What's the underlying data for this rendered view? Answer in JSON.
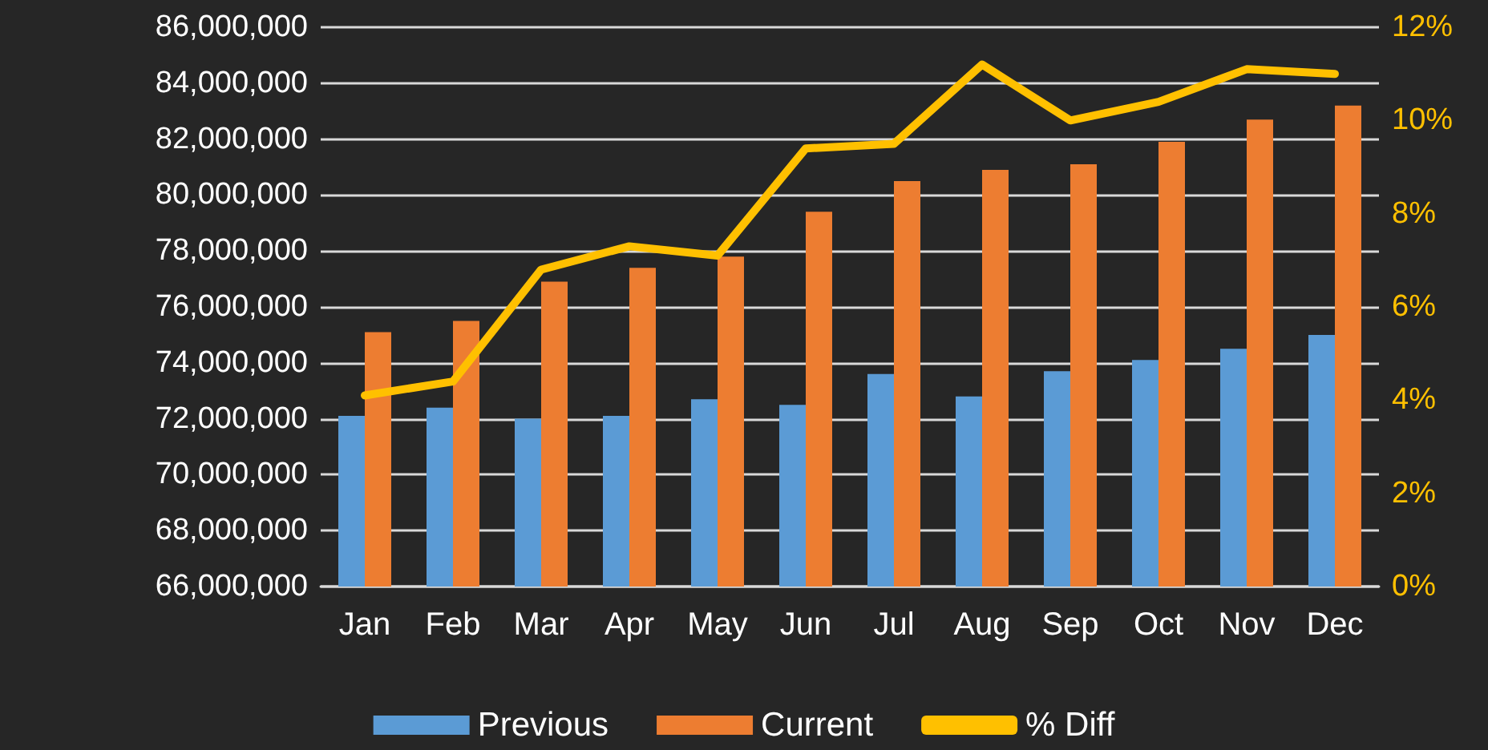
{
  "chart_data": {
    "type": "bar",
    "categories": [
      "Jan",
      "Feb",
      "Mar",
      "Apr",
      "May",
      "Jun",
      "Jul",
      "Aug",
      "Sep",
      "Oct",
      "Nov",
      "Dec"
    ],
    "series": [
      {
        "name": "Previous",
        "color": "#5b9bd5",
        "values": [
          72100000,
          72400000,
          72000000,
          72100000,
          72700000,
          72500000,
          73600000,
          72800000,
          73700000,
          74100000,
          74500000,
          75000000
        ]
      },
      {
        "name": "Current",
        "color": "#ed7d31",
        "values": [
          75100000,
          75500000,
          76900000,
          77400000,
          77800000,
          79400000,
          80500000,
          80900000,
          81100000,
          81900000,
          82700000,
          83200000
        ]
      },
      {
        "name": "% Diff",
        "type": "line",
        "axis": "y2",
        "color": "#ffc000",
        "marker": "none",
        "values": [
          4.1,
          4.4,
          6.8,
          7.3,
          7.1,
          9.4,
          9.5,
          11.2,
          10.0,
          10.4,
          11.1,
          11.0
        ]
      }
    ],
    "ylim": [
      66000000,
      86000000
    ],
    "yticks": [
      {
        "value": 66000000,
        "label": "66,000,000"
      },
      {
        "value": 68000000,
        "label": "68,000,000"
      },
      {
        "value": 70000000,
        "label": "70,000,000"
      },
      {
        "value": 72000000,
        "label": "72,000,000"
      },
      {
        "value": 74000000,
        "label": "74,000,000"
      },
      {
        "value": 76000000,
        "label": "76,000,000"
      },
      {
        "value": 78000000,
        "label": "78,000,000"
      },
      {
        "value": 80000000,
        "label": "80,000,000"
      },
      {
        "value": 82000000,
        "label": "82,000,000"
      },
      {
        "value": 84000000,
        "label": "84,000,000"
      },
      {
        "value": 86000000,
        "label": "86,000,000"
      }
    ],
    "y2lim": [
      0,
      12
    ],
    "y2ticks": [
      {
        "value": 0,
        "label": "0%"
      },
      {
        "value": 2,
        "label": "2%"
      },
      {
        "value": 4,
        "label": "4%"
      },
      {
        "value": 6,
        "label": "6%"
      },
      {
        "value": 8,
        "label": "8%"
      },
      {
        "value": 10,
        "label": "10%"
      },
      {
        "value": 12,
        "label": "12%"
      }
    ],
    "grid": "y",
    "legend": "bottom"
  }
}
